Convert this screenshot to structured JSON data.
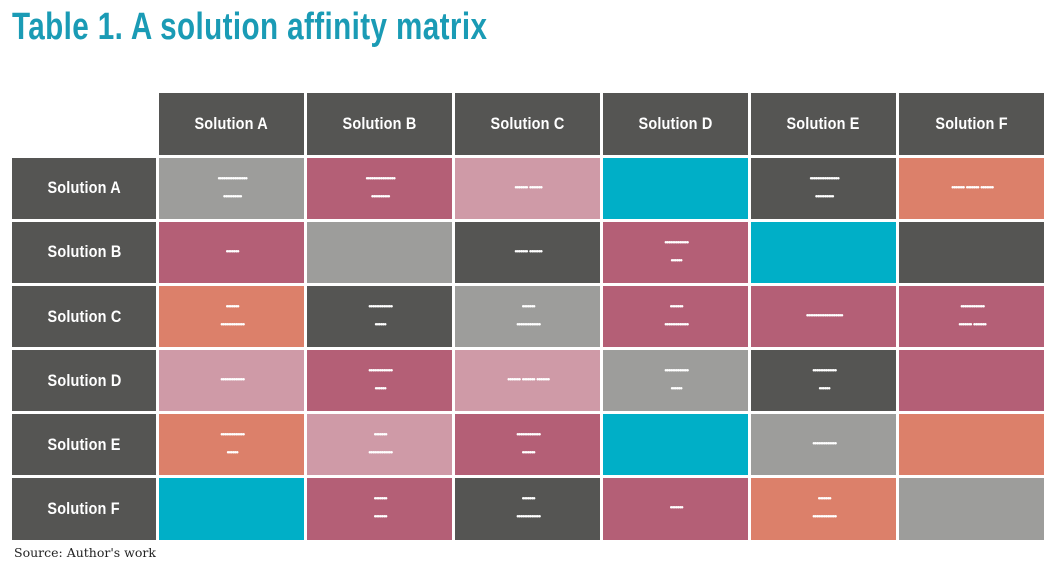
{
  "title": "Table 1. A solution affinity matrix",
  "source": "Source: Author's work",
  "colors": {
    "dark": "#555553",
    "gray": "#9d9d9b",
    "magenta": "#b45f76",
    "pink": "#cf9aa7",
    "cyan": "#00afc7",
    "salmon": "#dc806a"
  },
  "headers": [
    "Solution A",
    "Solution B",
    "Solution C",
    "Solution D",
    "Solution E",
    "Solution F"
  ],
  "rows": [
    {
      "label": "Solution A",
      "cells": [
        {
          "color": "gray",
          "lines": [
            "••••••••••••••••",
            "••••••••••"
          ]
        },
        {
          "color": "magenta",
          "lines": [
            "••••••••••••••••",
            "••••••••••"
          ]
        },
        {
          "color": "pink",
          "lines": [
            "••••••• •••••••"
          ]
        },
        {
          "color": "cyan",
          "lines": []
        },
        {
          "color": "dark",
          "lines": [
            "••••••••••••••••",
            "••••••••••"
          ]
        },
        {
          "color": "salmon",
          "lines": [
            "••••••• ••••••• •••••••"
          ]
        }
      ]
    },
    {
      "label": "Solution B",
      "cells": [
        {
          "color": "magenta",
          "lines": [
            "•••••••"
          ]
        },
        {
          "color": "gray",
          "lines": []
        },
        {
          "color": "dark",
          "lines": [
            "••••••• •••••••"
          ]
        },
        {
          "color": "magenta",
          "lines": [
            "•••••••••••••",
            "••••••"
          ]
        },
        {
          "color": "cyan",
          "lines": []
        },
        {
          "color": "dark",
          "lines": []
        }
      ]
    },
    {
      "label": "Solution C",
      "cells": [
        {
          "color": "salmon",
          "lines": [
            "•••••••",
            "•••••••••••••"
          ]
        },
        {
          "color": "dark",
          "lines": [
            "•••••••••••••",
            "••••••"
          ]
        },
        {
          "color": "gray",
          "lines": [
            "•••••••",
            "•••••••••••••"
          ]
        },
        {
          "color": "magenta",
          "lines": [
            "•••••••",
            "•••••••••••••"
          ]
        },
        {
          "color": "magenta",
          "lines": [
            "••••••••••••••••••••"
          ]
        },
        {
          "color": "magenta",
          "lines": [
            "•••••••••••••",
            "••••••• •••••••"
          ]
        }
      ]
    },
    {
      "label": "Solution D",
      "cells": [
        {
          "color": "pink",
          "lines": [
            "•••••••••••••"
          ]
        },
        {
          "color": "magenta",
          "lines": [
            "•••••••••••••",
            "••••••"
          ]
        },
        {
          "color": "pink",
          "lines": [
            "••••••• ••••••• •••••••"
          ]
        },
        {
          "color": "gray",
          "lines": [
            "•••••••••••••",
            "••••••"
          ]
        },
        {
          "color": "dark",
          "lines": [
            "•••••••••••••",
            "••••••"
          ]
        },
        {
          "color": "magenta",
          "lines": []
        }
      ]
    },
    {
      "label": "Solution E",
      "cells": [
        {
          "color": "salmon",
          "lines": [
            "•••••••••••••",
            "••••••"
          ]
        },
        {
          "color": "pink",
          "lines": [
            "•••••••",
            "•••••••••••••"
          ]
        },
        {
          "color": "magenta",
          "lines": [
            "•••••••••••••",
            "•••••••"
          ]
        },
        {
          "color": "cyan",
          "lines": []
        },
        {
          "color": "gray",
          "lines": [
            "•••••••••••••"
          ]
        },
        {
          "color": "salmon",
          "lines": []
        }
      ]
    },
    {
      "label": "Solution F",
      "cells": [
        {
          "color": "cyan",
          "lines": []
        },
        {
          "color": "magenta",
          "lines": [
            "•••••••",
            "•••••••"
          ]
        },
        {
          "color": "dark",
          "lines": [
            "•••••••",
            "•••••••••••••"
          ]
        },
        {
          "color": "magenta",
          "lines": [
            "•••••••"
          ]
        },
        {
          "color": "salmon",
          "lines": [
            "•••••••",
            "•••••••••••••"
          ]
        },
        {
          "color": "gray",
          "lines": []
        }
      ]
    }
  ]
}
